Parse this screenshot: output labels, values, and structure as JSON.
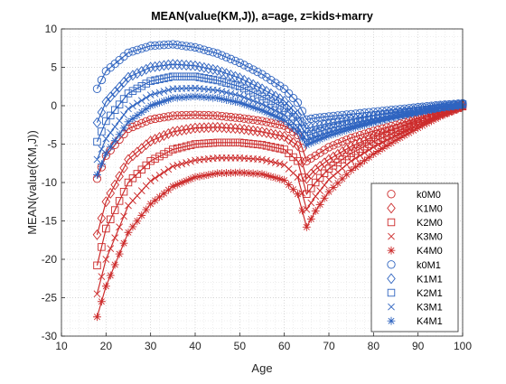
{
  "chart_data": {
    "type": "line",
    "title": "MEAN(value(KM,J)), a=age, z=kids+marry",
    "xlabel": "Age",
    "ylabel": "MEAN(value(KM,J))",
    "xlim": [
      10,
      100
    ],
    "ylim": [
      -30,
      10
    ],
    "xticks": [
      10,
      20,
      30,
      40,
      50,
      60,
      70,
      80,
      90,
      100
    ],
    "yticks": [
      -30,
      -25,
      -20,
      -15,
      -10,
      -5,
      0,
      5,
      10
    ],
    "grid": "on (major and minor, dotted)",
    "legend_position": "bottom-right",
    "marker_step": 1,
    "x_start": 18,
    "x_end": 100,
    "series": [
      {
        "name": "k0M0",
        "color": "#cc2b2b",
        "marker": "circle",
        "anchors": [
          [
            18,
            -9.5
          ],
          [
            20,
            -6.5
          ],
          [
            25,
            -3
          ],
          [
            30,
            -1.8
          ],
          [
            35,
            -1.3
          ],
          [
            40,
            -1.2
          ],
          [
            45,
            -1.3
          ],
          [
            50,
            -1.6
          ],
          [
            55,
            -2
          ],
          [
            60,
            -2.6
          ],
          [
            63,
            -3.8
          ],
          [
            65,
            -7.2
          ],
          [
            67,
            -6.5
          ],
          [
            70,
            -5.4
          ],
          [
            75,
            -4.2
          ],
          [
            80,
            -3.3
          ],
          [
            85,
            -2.5
          ],
          [
            90,
            -1.6
          ],
          [
            95,
            -0.8
          ],
          [
            100,
            0.1
          ]
        ]
      },
      {
        "name": "K1M0",
        "color": "#cc2b2b",
        "marker": "diamond",
        "anchors": [
          [
            18,
            -16.8
          ],
          [
            20,
            -12.5
          ],
          [
            25,
            -7
          ],
          [
            30,
            -4.6
          ],
          [
            35,
            -3.4
          ],
          [
            40,
            -2.9
          ],
          [
            45,
            -2.8
          ],
          [
            50,
            -3
          ],
          [
            55,
            -3.4
          ],
          [
            60,
            -4
          ],
          [
            63,
            -5.2
          ],
          [
            65,
            -9.5
          ],
          [
            67,
            -8.3
          ],
          [
            70,
            -7
          ],
          [
            75,
            -5.3
          ],
          [
            80,
            -4
          ],
          [
            85,
            -3
          ],
          [
            90,
            -1.9
          ],
          [
            95,
            -0.9
          ],
          [
            100,
            0
          ]
        ]
      },
      {
        "name": "K2M0",
        "color": "#cc2b2b",
        "marker": "square",
        "anchors": [
          [
            18,
            -20.8
          ],
          [
            20,
            -16
          ],
          [
            25,
            -10
          ],
          [
            30,
            -7.2
          ],
          [
            35,
            -5.7
          ],
          [
            40,
            -5
          ],
          [
            45,
            -4.8
          ],
          [
            50,
            -4.8
          ],
          [
            55,
            -5.1
          ],
          [
            60,
            -5.7
          ],
          [
            63,
            -7.2
          ],
          [
            65,
            -11.5
          ],
          [
            67,
            -10
          ],
          [
            70,
            -8.2
          ],
          [
            75,
            -6.2
          ],
          [
            80,
            -4.7
          ],
          [
            85,
            -3.4
          ],
          [
            90,
            -2.2
          ],
          [
            95,
            -1.1
          ],
          [
            100,
            -0.1
          ]
        ]
      },
      {
        "name": "K3M0",
        "color": "#cc2b2b",
        "marker": "x",
        "anchors": [
          [
            18,
            -24.5
          ],
          [
            20,
            -20
          ],
          [
            25,
            -13
          ],
          [
            30,
            -9.8
          ],
          [
            35,
            -7.9
          ],
          [
            40,
            -7.1
          ],
          [
            45,
            -6.8
          ],
          [
            50,
            -6.8
          ],
          [
            55,
            -7
          ],
          [
            60,
            -7.7
          ],
          [
            63,
            -9.3
          ],
          [
            65,
            -13.5
          ],
          [
            67,
            -11.8
          ],
          [
            70,
            -9.6
          ],
          [
            75,
            -7.2
          ],
          [
            80,
            -5.4
          ],
          [
            85,
            -3.9
          ],
          [
            90,
            -2.5
          ],
          [
            95,
            -1.2
          ],
          [
            100,
            -0.1
          ]
        ]
      },
      {
        "name": "K4M0",
        "color": "#cc2b2b",
        "marker": "star",
        "anchors": [
          [
            18,
            -27.5
          ],
          [
            20,
            -23.5
          ],
          [
            25,
            -16.5
          ],
          [
            30,
            -12.8
          ],
          [
            35,
            -10.5
          ],
          [
            40,
            -9.3
          ],
          [
            45,
            -8.8
          ],
          [
            50,
            -8.7
          ],
          [
            55,
            -8.9
          ],
          [
            60,
            -9.7
          ],
          [
            63,
            -11.5
          ],
          [
            65,
            -15.8
          ],
          [
            67,
            -13.7
          ],
          [
            70,
            -11.2
          ],
          [
            75,
            -8.4
          ],
          [
            80,
            -6.3
          ],
          [
            85,
            -4.5
          ],
          [
            90,
            -2.9
          ],
          [
            95,
            -1.4
          ],
          [
            100,
            -0.2
          ]
        ]
      },
      {
        "name": "k0M1",
        "color": "#2f64c0",
        "marker": "circle",
        "anchors": [
          [
            18,
            2.2
          ],
          [
            20,
            4.5
          ],
          [
            25,
            6.9
          ],
          [
            30,
            7.8
          ],
          [
            35,
            8
          ],
          [
            40,
            7.6
          ],
          [
            45,
            6.8
          ],
          [
            50,
            5.6
          ],
          [
            55,
            4.1
          ],
          [
            60,
            2.2
          ],
          [
            63,
            0.4
          ],
          [
            65,
            -1.8
          ],
          [
            67,
            -1.6
          ],
          [
            70,
            -1.4
          ],
          [
            75,
            -1.1
          ],
          [
            80,
            -0.8
          ],
          [
            85,
            -0.5
          ],
          [
            90,
            -0.2
          ],
          [
            95,
            0.1
          ],
          [
            100,
            0.3
          ]
        ]
      },
      {
        "name": "K1M1",
        "color": "#2f64c0",
        "marker": "diamond",
        "anchors": [
          [
            18,
            -2.2
          ],
          [
            20,
            0.5
          ],
          [
            25,
            3.7
          ],
          [
            30,
            5
          ],
          [
            35,
            5.4
          ],
          [
            40,
            5.2
          ],
          [
            45,
            4.6
          ],
          [
            50,
            3.6
          ],
          [
            55,
            2.2
          ],
          [
            60,
            0.6
          ],
          [
            63,
            -1.2
          ],
          [
            65,
            -3
          ],
          [
            67,
            -2.7
          ],
          [
            70,
            -2.3
          ],
          [
            75,
            -1.8
          ],
          [
            80,
            -1.3
          ],
          [
            85,
            -0.9
          ],
          [
            90,
            -0.5
          ],
          [
            95,
            -0.1
          ],
          [
            100,
            0.2
          ]
        ]
      },
      {
        "name": "K2M1",
        "color": "#2f64c0",
        "marker": "square",
        "anchors": [
          [
            18,
            -4.7
          ],
          [
            20,
            -2
          ],
          [
            25,
            1.6
          ],
          [
            30,
            3.2
          ],
          [
            35,
            3.8
          ],
          [
            40,
            3.8
          ],
          [
            45,
            3.3
          ],
          [
            50,
            2.5
          ],
          [
            55,
            1.2
          ],
          [
            60,
            -0.3
          ],
          [
            63,
            -2
          ],
          [
            65,
            -3.9
          ],
          [
            67,
            -3.5
          ],
          [
            70,
            -3
          ],
          [
            75,
            -2.3
          ],
          [
            80,
            -1.7
          ],
          [
            85,
            -1.2
          ],
          [
            90,
            -0.7
          ],
          [
            95,
            -0.2
          ],
          [
            100,
            0.2
          ]
        ]
      },
      {
        "name": "K3M1",
        "color": "#2f64c0",
        "marker": "x",
        "anchors": [
          [
            18,
            -7
          ],
          [
            20,
            -4.3
          ],
          [
            25,
            -0.4
          ],
          [
            30,
            1.4
          ],
          [
            35,
            2.2
          ],
          [
            40,
            2.3
          ],
          [
            45,
            2
          ],
          [
            50,
            1.3
          ],
          [
            55,
            0.2
          ],
          [
            60,
            -1.2
          ],
          [
            63,
            -2.8
          ],
          [
            65,
            -4.5
          ],
          [
            67,
            -4.1
          ],
          [
            70,
            -3.5
          ],
          [
            75,
            -2.7
          ],
          [
            80,
            -2
          ],
          [
            85,
            -1.4
          ],
          [
            90,
            -0.8
          ],
          [
            95,
            -0.3
          ],
          [
            100,
            0.1
          ]
        ]
      },
      {
        "name": "K4M1",
        "color": "#2f64c0",
        "marker": "star",
        "anchors": [
          [
            18,
            -9
          ],
          [
            20,
            -6.2
          ],
          [
            25,
            -2.1
          ],
          [
            30,
            0
          ],
          [
            35,
            1
          ],
          [
            40,
            1.2
          ],
          [
            45,
            1
          ],
          [
            50,
            0.4
          ],
          [
            55,
            -0.6
          ],
          [
            60,
            -1.9
          ],
          [
            63,
            -3.4
          ],
          [
            65,
            -5.1
          ],
          [
            67,
            -4.6
          ],
          [
            70,
            -3.9
          ],
          [
            75,
            -3
          ],
          [
            80,
            -2.2
          ],
          [
            85,
            -1.5
          ],
          [
            90,
            -0.9
          ],
          [
            95,
            -0.3
          ],
          [
            100,
            0
          ]
        ]
      }
    ]
  }
}
